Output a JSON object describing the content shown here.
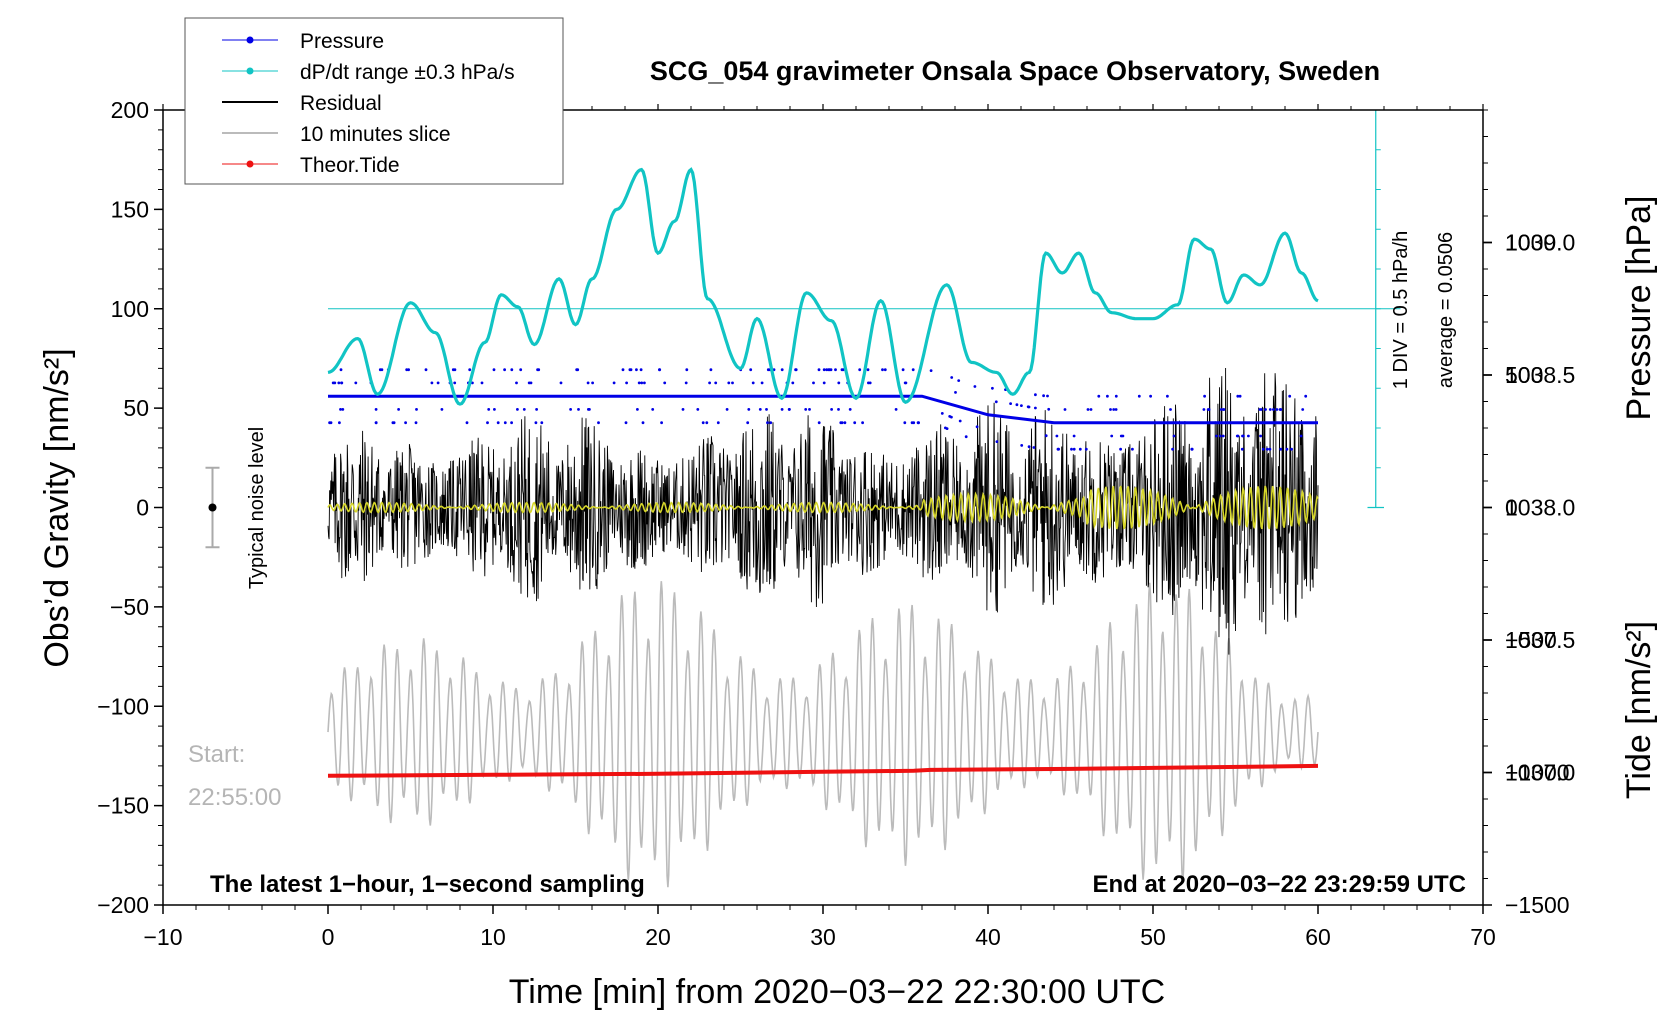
{
  "colors": {
    "pressure": "#0000e6",
    "dpdt": "#11c4c4",
    "residual": "#000000",
    "slice": "#bbbbbb",
    "tide": "#ee1111",
    "filtered": "#d6d62a",
    "error_bar": "#aaaaaa"
  },
  "chart_data": {
    "type": "line",
    "title": "SCG_054 gravimeter Onsala Space Observatory, Sweden",
    "xlabel": "Time [min] from 2020−03−22 22:30:00 UTC",
    "ylabel_left": "Obs’d Gravity [nm/s²]",
    "ylabel_right_top": "Pressure [hPa]",
    "ylabel_right_bottom": "Tide [nm/s²]",
    "xlim": [
      -10,
      70
    ],
    "ylim_gravity": [
      -200,
      200
    ],
    "ylim_pressure": [
      1036.5,
      1039.5
    ],
    "ylim_tide": [
      -1500,
      1500
    ],
    "x_ticks": [
      "−10",
      "0",
      "10",
      "20",
      "30",
      "40",
      "50",
      "60",
      "70"
    ],
    "y_left_ticks": [
      "200",
      "150",
      "100",
      "50",
      "0",
      "−50",
      "−100",
      "−150",
      "−200"
    ],
    "y_right_pressure_ticks": [
      "1039.0",
      "1038.5",
      "1038.0",
      "1037.5",
      "1037.0"
    ],
    "y_right_tide_ticks": [
      "1000",
      "500",
      "0",
      "−500",
      "−1000",
      "−1500"
    ],
    "legend": {
      "position": "top-left",
      "entries": [
        "Pressure",
        "dP/dt range ±0.3 hPa/s",
        "Residual",
        "10 minutes slice",
        "Theor.Tide"
      ]
    },
    "series": [
      {
        "name": "Pressure",
        "unit": "hPa",
        "x": [
          0,
          10,
          20,
          30,
          36,
          40,
          44,
          50,
          60
        ],
        "values": [
          1038.42,
          1038.42,
          1038.42,
          1038.42,
          1038.42,
          1038.35,
          1038.32,
          1038.32,
          1038.32
        ]
      },
      {
        "name": "dP/dt range ±0.3 hPa/s",
        "unit": "gravity-axis units",
        "x": [
          0,
          1.8,
          3,
          5,
          6.5,
          8,
          9.5,
          10.5,
          11.5,
          12.5,
          14,
          15,
          16,
          17.5,
          19,
          20,
          21,
          22,
          23,
          25,
          26,
          27.5,
          29,
          30.5,
          32,
          33.5,
          35,
          37.5,
          39,
          40.5,
          41.5,
          42.5,
          43.5,
          44.5,
          45.5,
          46.5,
          47.5,
          49,
          50,
          51.5,
          52.5,
          53.5,
          54.5,
          55.5,
          56.5,
          58,
          59,
          60
        ],
        "values": [
          68,
          85,
          57,
          103,
          88,
          52,
          83,
          107,
          101,
          82,
          115,
          92,
          115,
          150,
          170,
          128,
          144,
          170,
          105,
          70,
          95,
          55,
          108,
          94,
          55,
          104,
          53,
          112,
          73,
          68,
          57,
          68,
          128,
          118,
          128,
          108,
          98,
          95,
          95,
          102,
          135,
          130,
          103,
          117,
          112,
          138,
          118,
          104
        ]
      },
      {
        "name": "Residual",
        "unit": "nm/s²",
        "x": [
          0,
          10,
          20,
          30,
          40,
          50,
          60
        ],
        "envelope_values": [
          45,
          50,
          50,
          55,
          55,
          70,
          90
        ]
      },
      {
        "name": "10 minutes slice",
        "start_label": "Start:",
        "start_time": "22:55:00",
        "x": [
          0,
          10,
          20,
          30,
          40,
          50,
          60
        ],
        "envelope_values": [
          40,
          60,
          80,
          70,
          65,
          80,
          45
        ]
      },
      {
        "name": "Theor.Tide",
        "unit": "nm/s²",
        "x": [
          0,
          10,
          20,
          30,
          35.5,
          36.5,
          45,
          60
        ],
        "values": [
          -135,
          -134.5,
          -134,
          -133,
          -132.5,
          -132,
          -131.5,
          -130
        ]
      }
    ],
    "annotations": {
      "pressure_rate": "1 DIV = 0.5 hPa/h",
      "average": "average = 0.0506",
      "noise_label": "Typical noise level",
      "noise_range": [
        -20,
        20
      ],
      "sampling_note": "The latest 1−hour, 1−second sampling",
      "end_note": "End at 2020−03−22 23:29:59 UTC"
    }
  }
}
